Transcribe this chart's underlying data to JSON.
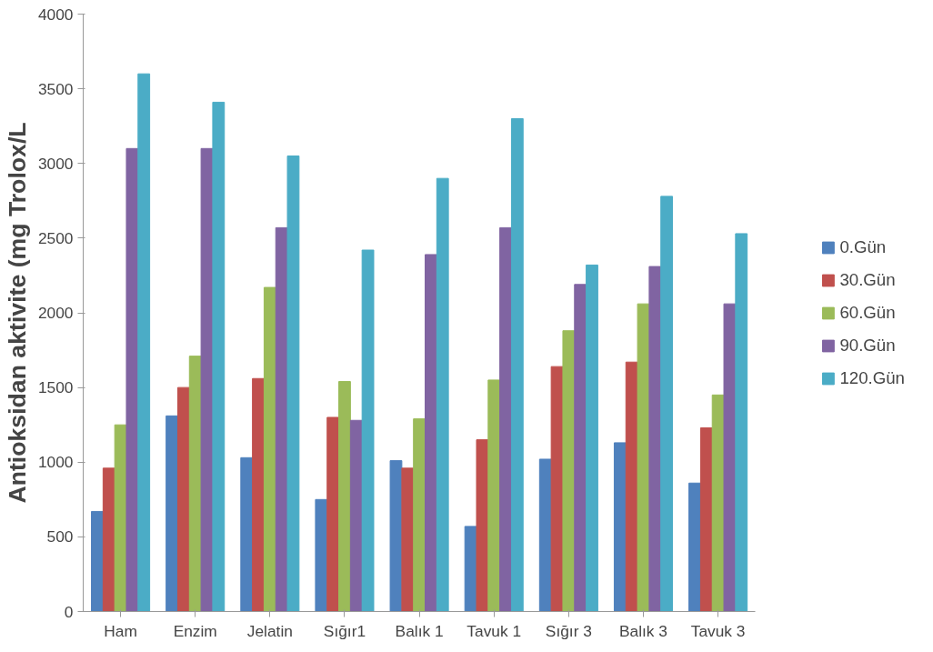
{
  "chart_data": {
    "type": "bar",
    "ylabel": "Antioksidan aktivite (mg Trolox/L",
    "categories": [
      "Ham",
      "Enzim",
      "Jelatin",
      "Sığır1",
      "Balık 1",
      "Tavuk 1",
      "Sığır 3",
      "Balık 3",
      "Tavuk 3"
    ],
    "series": [
      {
        "name": "0.Gün",
        "color": "#4f81bd",
        "values": [
          670,
          1310,
          1030,
          750,
          1010,
          570,
          1020,
          1130,
          860
        ]
      },
      {
        "name": "30.Gün",
        "color": "#c0504d",
        "values": [
          960,
          1500,
          1560,
          1300,
          960,
          1150,
          1640,
          1670,
          1230
        ]
      },
      {
        "name": "60.Gün",
        "color": "#9bbb59",
        "values": [
          1250,
          1710,
          2170,
          1540,
          1290,
          1550,
          1880,
          2060,
          1450
        ]
      },
      {
        "name": "90.Gün",
        "color": "#8064a2",
        "values": [
          3100,
          3100,
          2570,
          1280,
          2390,
          2570,
          2190,
          2310,
          2060
        ]
      },
      {
        "name": "120.Gün",
        "color": "#4bacc6",
        "values": [
          3600,
          3410,
          3050,
          2420,
          2900,
          3300,
          2320,
          2780,
          2530
        ]
      }
    ],
    "ylim": [
      0,
      4000
    ],
    "yticks": [
      0,
      500,
      1000,
      1500,
      2000,
      2500,
      3000,
      3500,
      4000
    ],
    "grid": false,
    "legend": "right"
  }
}
